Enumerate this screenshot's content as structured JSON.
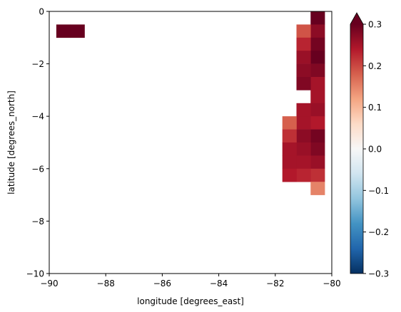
{
  "chart_data": {
    "type": "heatmap",
    "title": "",
    "xlabel": "longitude [degrees_east]",
    "ylabel": "latitude [degrees_north]",
    "xlim": [
      -90,
      -80
    ],
    "ylim": [
      -10,
      0
    ],
    "xticks": [
      -90,
      -88,
      -86,
      -84,
      -82,
      -80
    ],
    "xtick_labels": [
      "−90",
      "−88",
      "−86",
      "−84",
      "−82",
      "−80"
    ],
    "yticks": [
      0,
      -2,
      -4,
      -6,
      -8,
      -10
    ],
    "ytick_labels": [
      "0",
      "−2",
      "−4",
      "−6",
      "−8",
      "−10"
    ],
    "cell_size": 0.5,
    "colorbar": {
      "colormap": "RdBu_r",
      "vmin": -0.3,
      "vmax": 0.3,
      "extend": "max",
      "ticks": [
        0.3,
        0.2,
        0.1,
        0.0,
        -0.1,
        -0.2,
        -0.3
      ],
      "tick_labels": [
        "0.3",
        "0.2",
        "0.1",
        "0.0",
        "−0.1",
        "−0.2",
        "−0.3"
      ]
    },
    "cells": [
      {
        "lon": -89.5,
        "lat": -0.75,
        "value": 0.3
      },
      {
        "lon": -89.0,
        "lat": -0.75,
        "value": 0.3
      },
      {
        "lon": -80.5,
        "lat": -0.25,
        "value": 0.3
      },
      {
        "lon": -80.5,
        "lat": -0.75,
        "value": 0.27
      },
      {
        "lon": -81.0,
        "lat": -0.75,
        "value": 0.19
      },
      {
        "lon": -80.5,
        "lat": -1.25,
        "value": 0.29
      },
      {
        "lon": -81.0,
        "lat": -1.25,
        "value": 0.23
      },
      {
        "lon": -80.5,
        "lat": -1.75,
        "value": 0.3
      },
      {
        "lon": -81.0,
        "lat": -1.75,
        "value": 0.26
      },
      {
        "lon": -80.5,
        "lat": -2.25,
        "value": 0.28
      },
      {
        "lon": -81.0,
        "lat": -2.25,
        "value": 0.27
      },
      {
        "lon": -80.5,
        "lat": -2.75,
        "value": 0.25
      },
      {
        "lon": -81.0,
        "lat": -2.75,
        "value": 0.28
      },
      {
        "lon": -80.5,
        "lat": -3.25,
        "value": 0.25
      },
      {
        "lon": -80.5,
        "lat": -3.75,
        "value": 0.26
      },
      {
        "lon": -81.0,
        "lat": -3.75,
        "value": 0.25
      },
      {
        "lon": -80.5,
        "lat": -4.25,
        "value": 0.24
      },
      {
        "lon": -81.0,
        "lat": -4.25,
        "value": 0.25
      },
      {
        "lon": -81.5,
        "lat": -4.25,
        "value": 0.18
      },
      {
        "lon": -80.5,
        "lat": -4.75,
        "value": 0.29
      },
      {
        "lon": -81.0,
        "lat": -4.75,
        "value": 0.27
      },
      {
        "lon": -81.5,
        "lat": -4.75,
        "value": 0.22
      },
      {
        "lon": -80.5,
        "lat": -5.25,
        "value": 0.28
      },
      {
        "lon": -81.0,
        "lat": -5.25,
        "value": 0.26
      },
      {
        "lon": -81.5,
        "lat": -5.25,
        "value": 0.25
      },
      {
        "lon": -80.5,
        "lat": -5.75,
        "value": 0.26
      },
      {
        "lon": -81.0,
        "lat": -5.75,
        "value": 0.25
      },
      {
        "lon": -81.5,
        "lat": -5.75,
        "value": 0.25
      },
      {
        "lon": -80.5,
        "lat": -6.25,
        "value": 0.22
      },
      {
        "lon": -81.0,
        "lat": -6.25,
        "value": 0.23
      },
      {
        "lon": -81.5,
        "lat": -6.25,
        "value": 0.24
      },
      {
        "lon": -80.5,
        "lat": -6.75,
        "value": 0.15
      }
    ]
  }
}
